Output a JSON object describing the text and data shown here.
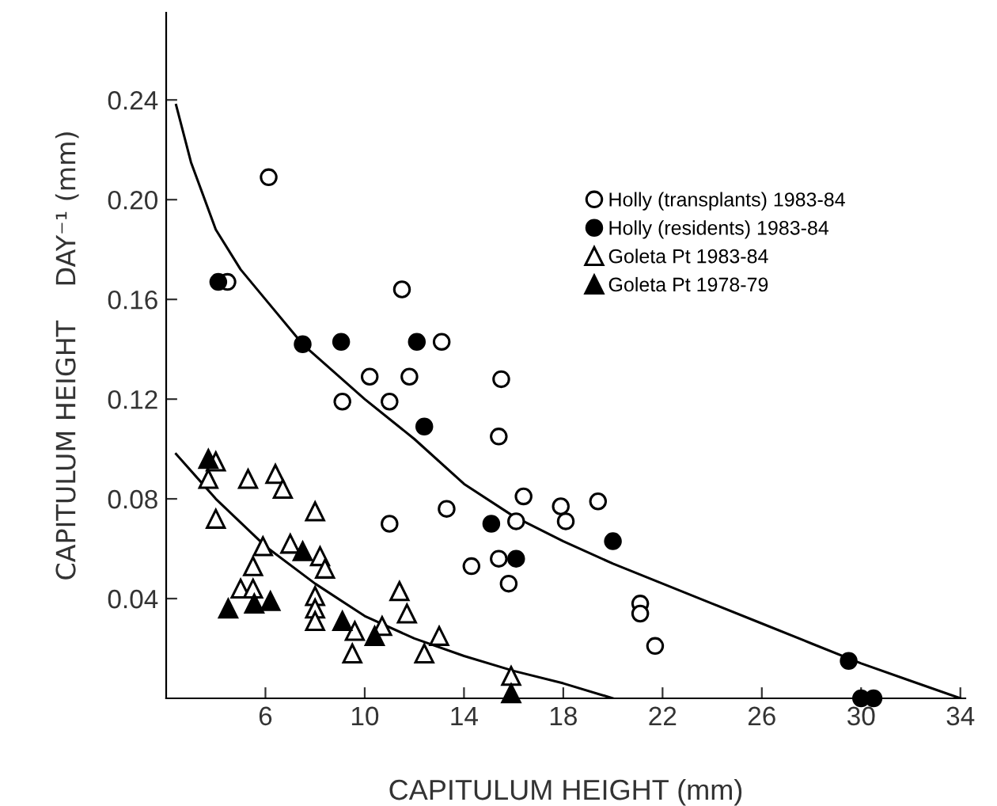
{
  "chart_data": {
    "type": "scatter",
    "xlabel": "CAPITULUM HEIGHT (mm)",
    "ylabel": "CAPITULUM HEIGHT    DAY⁻¹ (mm)",
    "xlim": [
      2,
      34.2
    ],
    "ylim": [
      0,
      0.275
    ],
    "xticks": [
      6,
      10,
      14,
      18,
      22,
      26,
      30,
      34
    ],
    "yticks": [
      {
        "value": 0.04,
        "label": "0.04"
      },
      {
        "value": 0.08,
        "label": "0.08"
      },
      {
        "value": 0.12,
        "label": "0.12"
      },
      {
        "value": 0.16,
        "label": "0.16"
      },
      {
        "value": 0.2,
        "label": "0.20"
      },
      {
        "value": 0.24,
        "label": "0.24"
      }
    ],
    "grid": false,
    "legend": "top right",
    "series": [
      {
        "name": "Holly (transplants) 1983-84",
        "color": "#ffffff",
        "marker": "circle",
        "x": [
          6.13,
          4.47,
          11.5,
          13.1,
          10.2,
          11.8,
          15.5,
          9.1,
          11.0,
          15.4,
          13.3,
          11.0,
          14.3,
          15.4,
          16.4,
          16.1,
          15.8,
          17.9,
          18.1,
          19.4,
          21.1,
          21.1,
          21.7
        ],
        "values": [
          0.209,
          0.167,
          0.164,
          0.143,
          0.129,
          0.129,
          0.128,
          0.119,
          0.119,
          0.105,
          0.076,
          0.07,
          0.053,
          0.056,
          0.081,
          0.071,
          0.046,
          0.077,
          0.071,
          0.079,
          0.038,
          0.034,
          0.021
        ]
      },
      {
        "name": "Holly (residents) 1983-84",
        "color": "#000000",
        "marker": "circle",
        "x": [
          4.1,
          7.5,
          9.05,
          12.1,
          12.4,
          15.1,
          16.1,
          20.0,
          29.5,
          30.0,
          30.5
        ],
        "values": [
          0.167,
          0.142,
          0.143,
          0.143,
          0.109,
          0.07,
          0.056,
          0.063,
          0.015,
          0.0,
          0.0
        ]
      },
      {
        "name": "Goleta Pt 1983-84",
        "color": "#ffffff",
        "marker": "triangle",
        "x": [
          4.0,
          3.7,
          4.0,
          5.3,
          6.4,
          6.7,
          5.9,
          5.5,
          5.0,
          5.5,
          8.0,
          7.0,
          8.2,
          8.4,
          8.0,
          8.0,
          8.0,
          9.6,
          9.5,
          10.7,
          11.4,
          11.7,
          12.4,
          13.0,
          15.9
        ],
        "values": [
          0.095,
          0.088,
          0.072,
          0.088,
          0.09,
          0.084,
          0.061,
          0.053,
          0.044,
          0.044,
          0.075,
          0.062,
          0.057,
          0.052,
          0.041,
          0.036,
          0.031,
          0.027,
          0.018,
          0.029,
          0.043,
          0.034,
          0.018,
          0.025,
          0.009
        ]
      },
      {
        "name": "Goleta Pt 1978-79",
        "color": "#000000",
        "marker": "triangle",
        "x": [
          3.7,
          4.5,
          5.55,
          6.2,
          7.5,
          9.1,
          10.4,
          15.9
        ],
        "values": [
          0.096,
          0.036,
          0.038,
          0.039,
          0.059,
          0.031,
          0.025,
          0.002
        ]
      },
      {
        "type": "line",
        "color": "#000000",
        "x": [
          2.4,
          3,
          4,
          5,
          6,
          7.5,
          10,
          12,
          14,
          16,
          18,
          20,
          22,
          24,
          26,
          28,
          30,
          32,
          34
        ],
        "values": [
          0.238,
          0.215,
          0.188,
          0.172,
          0.16,
          0.142,
          0.12,
          0.104,
          0.086,
          0.073,
          0.063,
          0.054,
          0.046,
          0.038,
          0.03,
          0.022,
          0.014,
          0.007,
          0.0
        ]
      },
      {
        "type": "line",
        "color": "#000000",
        "x": [
          2.4,
          4,
          6,
          8,
          10,
          12,
          14,
          16,
          18,
          20
        ],
        "values": [
          0.098,
          0.08,
          0.061,
          0.046,
          0.033,
          0.024,
          0.017,
          0.011,
          0.006,
          0.0
        ]
      }
    ]
  }
}
